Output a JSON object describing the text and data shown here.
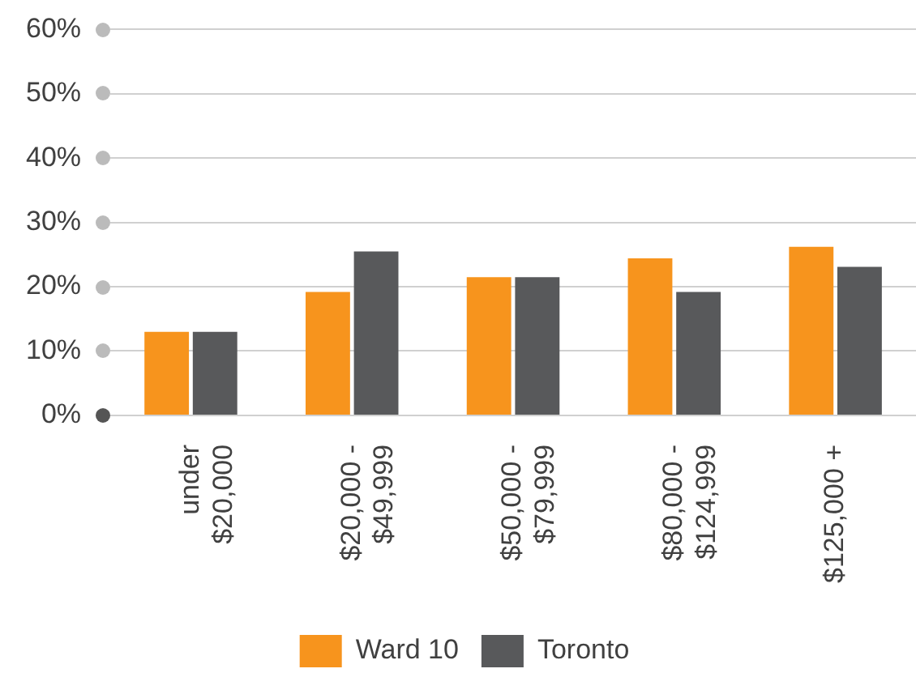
{
  "chart_data": {
    "type": "bar",
    "categories": [
      "under\n$20,000",
      "$20,000 -\n$49,999",
      "$50,000 -\n$79,999",
      "$80,000 -\n$124,999",
      "$125,000 +"
    ],
    "series": [
      {
        "name": "Ward 10",
        "color": "#f7941d",
        "values": [
          13,
          19.2,
          21.5,
          24.4,
          26.2
        ]
      },
      {
        "name": "Toronto",
        "color": "#58595b",
        "values": [
          13,
          25.5,
          21.5,
          19.2,
          23.1
        ]
      }
    ],
    "ylim": [
      0,
      60
    ],
    "yticks": [
      {
        "value": 0,
        "label": "0%"
      },
      {
        "value": 10,
        "label": "10%"
      },
      {
        "value": 20,
        "label": "20%"
      },
      {
        "value": 30,
        "label": "30%"
      },
      {
        "value": 40,
        "label": "40%"
      },
      {
        "value": 50,
        "label": "50%"
      },
      {
        "value": 60,
        "label": "60%"
      }
    ],
    "grid": "y",
    "legend": "bottom"
  }
}
